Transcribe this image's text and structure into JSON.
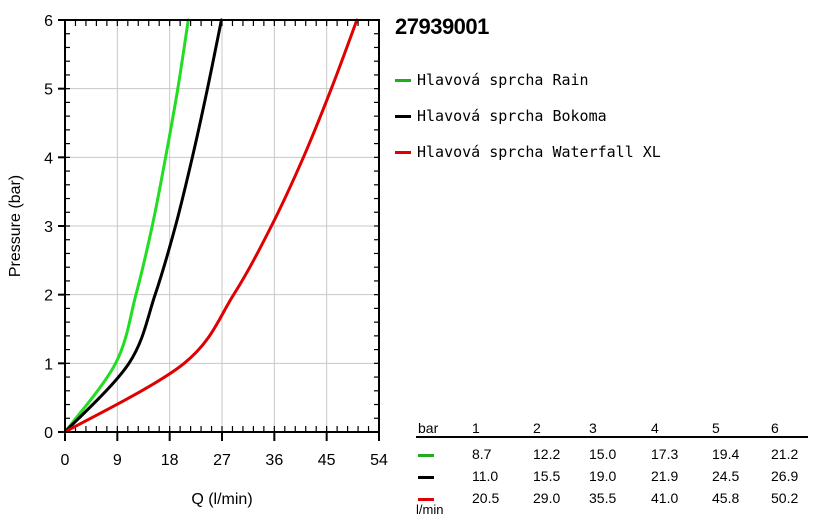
{
  "chart_data": {
    "type": "line",
    "title": "27939001",
    "xlabel": "Q (l/min)",
    "ylabel": "Pressure (bar)",
    "xlim": [
      0,
      54
    ],
    "ylim": [
      0,
      6
    ],
    "x_ticks": [
      0,
      9,
      18,
      27,
      36,
      45,
      54
    ],
    "y_ticks": [
      0,
      1,
      2,
      3,
      4,
      5,
      6
    ],
    "grid": true,
    "legend_position": "right",
    "series": [
      {
        "name": "Hlavová sprcha Rain",
        "color": "#22dd22",
        "x": [
          0,
          8.7,
          12.2,
          15.0,
          17.3,
          19.4,
          21.2
        ],
        "y": [
          0,
          1,
          2,
          3,
          4,
          5,
          6
        ]
      },
      {
        "name": "Hlavová sprcha Bokoma",
        "color": "#000000",
        "x": [
          0,
          11.0,
          15.5,
          19.0,
          21.9,
          24.5,
          26.9
        ],
        "y": [
          0,
          1,
          2,
          3,
          4,
          5,
          6
        ]
      },
      {
        "name": "Hlavová sprcha Waterfall XL",
        "color": "#e00000",
        "x": [
          0,
          20.5,
          29.0,
          35.5,
          41.0,
          45.8,
          50.2
        ],
        "y": [
          0,
          1,
          2,
          3,
          4,
          5,
          6
        ]
      }
    ]
  },
  "table": {
    "header_label": "bar",
    "pressures": [
      "1",
      "2",
      "3",
      "4",
      "5",
      "6"
    ],
    "unit": "l/min",
    "rows": [
      {
        "color": "#22aa22",
        "values": [
          "8.7",
          "12.2",
          "15.0",
          "17.3",
          "19.4",
          "21.2"
        ]
      },
      {
        "color": "#000000",
        "values": [
          "11.0",
          "15.5",
          "19.0",
          "21.9",
          "24.5",
          "26.9"
        ]
      },
      {
        "color": "#e00000",
        "values": [
          "20.5",
          "29.0",
          "35.5",
          "41.0",
          "45.8",
          "50.2"
        ]
      }
    ]
  },
  "legend_colors": [
    "#22aa22",
    "#000000",
    "#e00000"
  ]
}
